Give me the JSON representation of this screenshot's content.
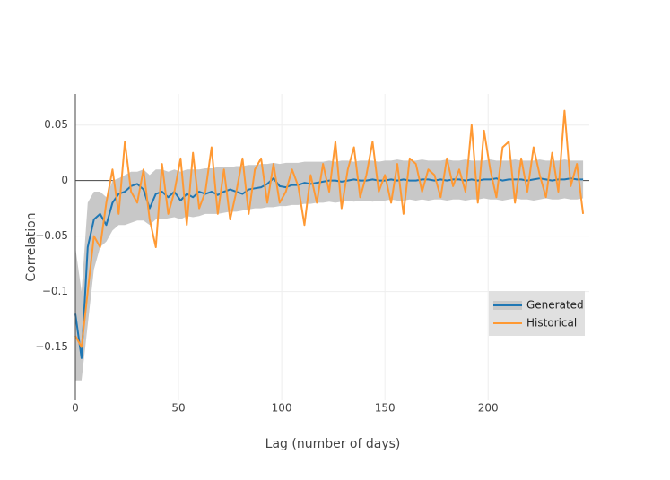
{
  "chart_data": {
    "type": "line",
    "x_label": "Lag (number of days)",
    "y_label": "Correlation",
    "x": [
      0,
      3,
      6,
      9,
      12,
      15,
      18,
      21,
      24,
      27,
      30,
      33,
      36,
      39,
      42,
      45,
      48,
      51,
      54,
      57,
      60,
      63,
      66,
      69,
      72,
      75,
      78,
      81,
      84,
      87,
      90,
      93,
      96,
      99,
      102,
      105,
      108,
      111,
      114,
      117,
      120,
      123,
      126,
      129,
      132,
      135,
      138,
      141,
      144,
      147,
      150,
      153,
      156,
      159,
      162,
      165,
      168,
      171,
      174,
      177,
      180,
      183,
      186,
      189,
      192,
      195,
      198,
      201,
      204,
      207,
      210,
      213,
      216,
      219,
      222,
      225,
      228,
      231,
      234,
      237,
      240,
      243,
      246
    ],
    "series": [
      {
        "name": "Generated",
        "color": "#1f77b4",
        "band_color": "#c8c8c8",
        "values": [
          -0.12,
          -0.16,
          -0.06,
          -0.035,
          -0.03,
          -0.04,
          -0.02,
          -0.012,
          -0.01,
          -0.005,
          -0.003,
          -0.008,
          -0.025,
          -0.012,
          -0.01,
          -0.015,
          -0.01,
          -0.018,
          -0.012,
          -0.015,
          -0.01,
          -0.012,
          -0.01,
          -0.013,
          -0.01,
          -0.008,
          -0.01,
          -0.012,
          -0.008,
          -0.007,
          -0.006,
          -0.003,
          0.002,
          -0.005,
          -0.006,
          -0.004,
          -0.004,
          -0.002,
          -0.003,
          -0.002,
          -0.001,
          0,
          0,
          -0.001,
          0,
          0.001,
          0,
          0,
          0.001,
          0,
          0,
          0.001,
          0,
          0.001,
          0,
          0,
          0.001,
          0.001,
          0,
          0.001,
          0,
          0.001,
          0.001,
          0,
          0.001,
          0,
          0.001,
          0.001,
          0.002,
          0,
          0.001,
          0.001,
          0.001,
          0,
          0.001,
          0.002,
          0.001,
          0,
          0.001,
          0.001,
          0.002,
          0.001,
          0.001
        ],
        "lower": [
          -0.18,
          -0.18,
          -0.13,
          -0.08,
          -0.06,
          -0.055,
          -0.045,
          -0.04,
          -0.04,
          -0.038,
          -0.036,
          -0.036,
          -0.04,
          -0.035,
          -0.035,
          -0.034,
          -0.033,
          -0.035,
          -0.032,
          -0.033,
          -0.032,
          -0.03,
          -0.03,
          -0.03,
          -0.029,
          -0.028,
          -0.028,
          -0.027,
          -0.026,
          -0.025,
          -0.025,
          -0.024,
          -0.024,
          -0.023,
          -0.023,
          -0.022,
          -0.022,
          -0.021,
          -0.021,
          -0.02,
          -0.02,
          -0.019,
          -0.02,
          -0.019,
          -0.018,
          -0.019,
          -0.018,
          -0.018,
          -0.019,
          -0.018,
          -0.018,
          -0.017,
          -0.018,
          -0.018,
          -0.017,
          -0.018,
          -0.017,
          -0.018,
          -0.017,
          -0.017,
          -0.018,
          -0.017,
          -0.017,
          -0.018,
          -0.017,
          -0.017,
          -0.016,
          -0.017,
          -0.017,
          -0.018,
          -0.017,
          -0.016,
          -0.017,
          -0.017,
          -0.018,
          -0.017,
          -0.016,
          -0.017,
          -0.017,
          -0.016,
          -0.017,
          -0.017,
          -0.016
        ],
        "upper": [
          -0.06,
          -0.1,
          -0.02,
          -0.01,
          -0.01,
          -0.015,
          0,
          0.002,
          0.005,
          0.008,
          0.008,
          0.01,
          0.005,
          0.01,
          0.01,
          0.008,
          0.01,
          0.008,
          0.01,
          0.01,
          0.01,
          0.011,
          0.011,
          0.012,
          0.012,
          0.012,
          0.013,
          0.013,
          0.014,
          0.014,
          0.015,
          0.015,
          0.016,
          0.015,
          0.016,
          0.016,
          0.016,
          0.017,
          0.017,
          0.017,
          0.017,
          0.018,
          0.017,
          0.018,
          0.018,
          0.017,
          0.018,
          0.018,
          0.018,
          0.017,
          0.018,
          0.018,
          0.019,
          0.018,
          0.018,
          0.018,
          0.019,
          0.018,
          0.018,
          0.018,
          0.019,
          0.018,
          0.018,
          0.019,
          0.018,
          0.018,
          0.018,
          0.019,
          0.018,
          0.018,
          0.018,
          0.019,
          0.018,
          0.018,
          0.018,
          0.019,
          0.018,
          0.018,
          0.018,
          0.019,
          0.018,
          0.018,
          0.018
        ]
      },
      {
        "name": "Historical",
        "color": "#ff9933",
        "values": [
          -0.14,
          -0.15,
          -0.1,
          -0.05,
          -0.06,
          -0.02,
          0.01,
          -0.03,
          0.035,
          -0.01,
          -0.02,
          0.01,
          -0.035,
          -0.06,
          0.015,
          -0.03,
          -0.01,
          0.02,
          -0.04,
          0.025,
          -0.025,
          -0.01,
          0.03,
          -0.03,
          0.01,
          -0.035,
          -0.01,
          0.02,
          -0.03,
          0.01,
          0.02,
          -0.02,
          0.015,
          -0.02,
          -0.01,
          0.01,
          -0.005,
          -0.04,
          0.005,
          -0.02,
          0.015,
          -0.01,
          0.035,
          -0.025,
          0.01,
          0.03,
          -0.015,
          0.005,
          0.035,
          -0.01,
          0.005,
          -0.02,
          0.015,
          -0.03,
          0.02,
          0.015,
          -0.01,
          0.01,
          0.005,
          -0.015,
          0.02,
          -0.005,
          0.01,
          -0.01,
          0.05,
          -0.02,
          0.045,
          0.01,
          -0.015,
          0.03,
          0.035,
          -0.02,
          0.02,
          -0.01,
          0.03,
          0.005,
          -0.015,
          0.025,
          -0.01,
          0.063,
          -0.005,
          0.015,
          -0.03
        ]
      }
    ],
    "xlim": [
      0,
      249
    ],
    "xticks": [
      0,
      50,
      100,
      150,
      200
    ],
    "ylim": [
      -0.198,
      0.078
    ],
    "yticks": [
      {
        "value": -0.15,
        "label": "−0.15"
      },
      {
        "value": -0.1,
        "label": "−0.1"
      },
      {
        "value": -0.05,
        "label": "−0.05"
      },
      0,
      0.05
    ],
    "grid": true,
    "legend_position": "lower right"
  }
}
